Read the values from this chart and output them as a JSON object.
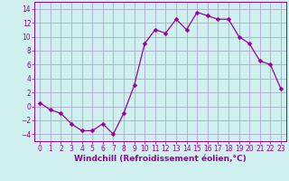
{
  "x": [
    0,
    1,
    2,
    3,
    4,
    5,
    6,
    7,
    8,
    9,
    10,
    11,
    12,
    13,
    14,
    15,
    16,
    17,
    18,
    19,
    20,
    21,
    22,
    23
  ],
  "y": [
    0.5,
    -0.5,
    -1.0,
    -2.5,
    -3.5,
    -3.5,
    -2.5,
    -4.0,
    -1.0,
    3.0,
    9.0,
    11.0,
    10.5,
    12.5,
    11.0,
    13.5,
    13.0,
    12.5,
    12.5,
    10.0,
    9.0,
    6.5,
    6.0,
    2.5
  ],
  "line_color": "#990099",
  "marker": "D",
  "marker_size": 2.5,
  "bg_color": "#d0f0f0",
  "grid_color": "#aaaacc",
  "xlabel": "Windchill (Refroidissement éolien,°C)",
  "xlabel_color": "#990099",
  "xlabel_fontsize": 6.5,
  "tick_color": "#990099",
  "tick_fontsize": 5.5,
  "ylim": [
    -5,
    15
  ],
  "yticks": [
    -4,
    -2,
    0,
    2,
    4,
    6,
    8,
    10,
    12,
    14
  ],
  "xlim": [
    -0.5,
    23.5
  ],
  "linewidth": 0.9
}
